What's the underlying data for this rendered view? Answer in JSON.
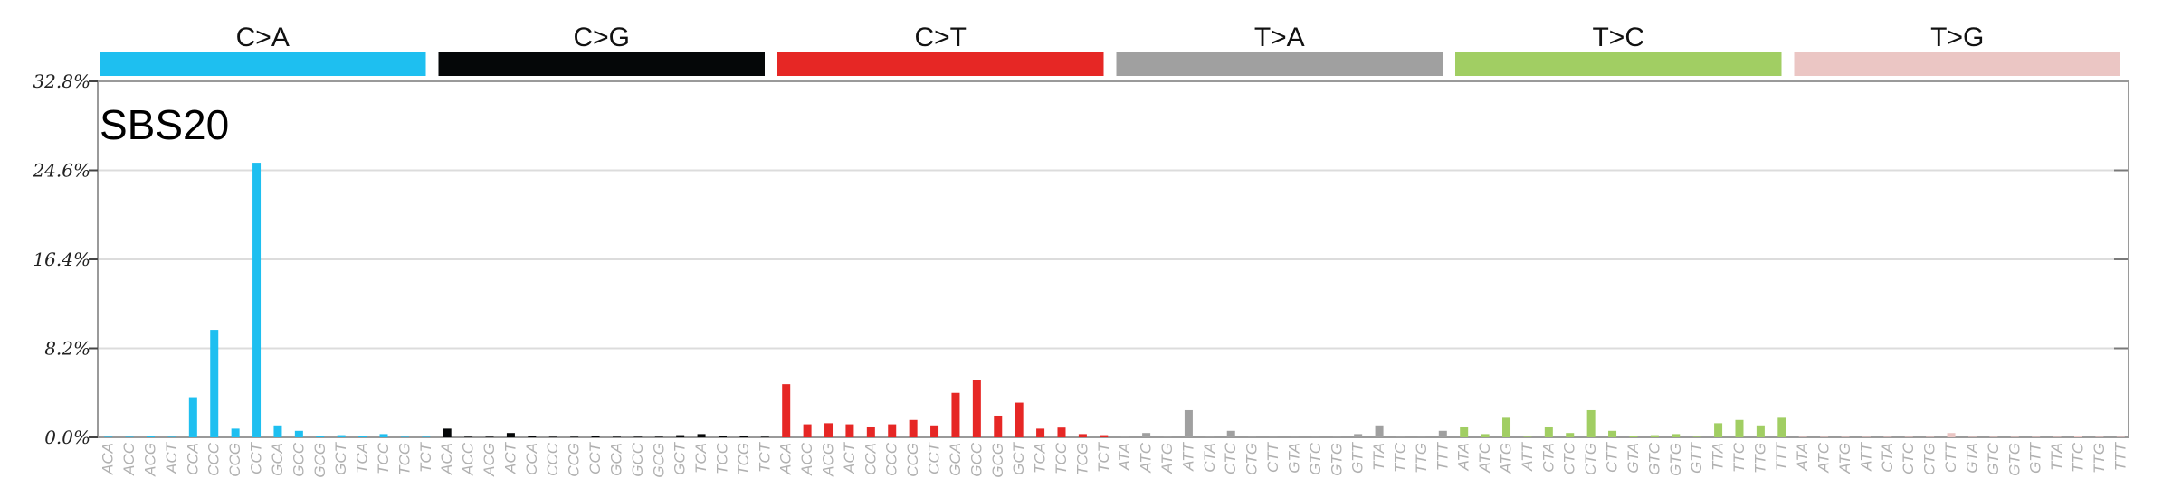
{
  "chart_data": {
    "type": "bar",
    "title": "SBS20",
    "ylim": [
      0,
      32.8
    ],
    "yticks": [
      "0.0%",
      "8.2%",
      "16.4%",
      "24.6%",
      "32.8%"
    ],
    "ytick_values": [
      0,
      8.2,
      16.4,
      24.6,
      32.8
    ],
    "grid": true,
    "groups": [
      {
        "name": "C>A",
        "color": "#1EBFF0",
        "categories": [
          "ACA",
          "ACC",
          "ACG",
          "ACT",
          "CCA",
          "CCC",
          "CCG",
          "CCT",
          "GCA",
          "GCC",
          "GCG",
          "GCT",
          "TCA",
          "TCC",
          "TCG",
          "TCT"
        ],
        "values": [
          0.05,
          0.05,
          0.1,
          0.05,
          3.7,
          9.9,
          0.8,
          25.3,
          1.1,
          0.6,
          0.1,
          0.2,
          0.1,
          0.3,
          0.05,
          0.05
        ]
      },
      {
        "name": "C>G",
        "color": "#050708",
        "categories": [
          "ACA",
          "ACC",
          "ACG",
          "ACT",
          "CCA",
          "CCC",
          "CCG",
          "CCT",
          "GCA",
          "GCC",
          "GCG",
          "GCT",
          "TCA",
          "TCC",
          "TCG",
          "TCT"
        ],
        "values": [
          0.8,
          0.05,
          0.05,
          0.4,
          0.15,
          0.05,
          0.05,
          0.1,
          0.05,
          0.05,
          0.05,
          0.2,
          0.3,
          0.1,
          0.1,
          0.05
        ]
      },
      {
        "name": "C>T",
        "color": "#E62725",
        "categories": [
          "ACA",
          "ACC",
          "ACG",
          "ACT",
          "CCA",
          "CCC",
          "CCG",
          "CCT",
          "GCA",
          "GCC",
          "GCG",
          "GCT",
          "TCA",
          "TCC",
          "TCG",
          "TCT"
        ],
        "values": [
          4.9,
          1.2,
          1.3,
          1.2,
          1.0,
          1.2,
          1.6,
          1.1,
          4.1,
          5.3,
          2.0,
          3.2,
          0.8,
          0.9,
          0.3,
          0.2
        ]
      },
      {
        "name": "T>A",
        "color": "#A0A0A0",
        "categories": [
          "ATA",
          "ATC",
          "ATG",
          "ATT",
          "CTA",
          "CTC",
          "CTG",
          "CTT",
          "GTA",
          "GTC",
          "GTG",
          "GTT",
          "TTA",
          "TTC",
          "TTG",
          "TTT"
        ],
        "values": [
          0.1,
          0.4,
          0.1,
          2.5,
          0.1,
          0.6,
          0.1,
          0.05,
          0.05,
          0.05,
          0.1,
          0.3,
          1.1,
          0.1,
          0.05,
          0.6
        ]
      },
      {
        "name": "T>C",
        "color": "#A1CE63",
        "categories": [
          "ATA",
          "ATC",
          "ATG",
          "ATT",
          "CTA",
          "CTC",
          "CTG",
          "CTT",
          "GTA",
          "GTC",
          "GTG",
          "GTT",
          "TTA",
          "TTC",
          "TTG",
          "TTT"
        ],
        "values": [
          1.0,
          0.3,
          1.8,
          0.05,
          1.0,
          0.4,
          2.5,
          0.6,
          0.1,
          0.2,
          0.3,
          0.05,
          1.3,
          1.6,
          1.1,
          1.8
        ]
      },
      {
        "name": "T>G",
        "color": "#EBC6C4",
        "categories": [
          "ATA",
          "ATC",
          "ATG",
          "ATT",
          "CTA",
          "CTC",
          "CTG",
          "CTT",
          "GTA",
          "GTC",
          "GTG",
          "GTT",
          "TTA",
          "TTC",
          "TTG",
          "TTT"
        ],
        "values": [
          0.05,
          0.05,
          0.05,
          0.05,
          0.05,
          0.05,
          0.05,
          0.4,
          0.05,
          0.05,
          0.05,
          0.05,
          0.05,
          0.1,
          0.05,
          0.05
        ]
      }
    ]
  }
}
